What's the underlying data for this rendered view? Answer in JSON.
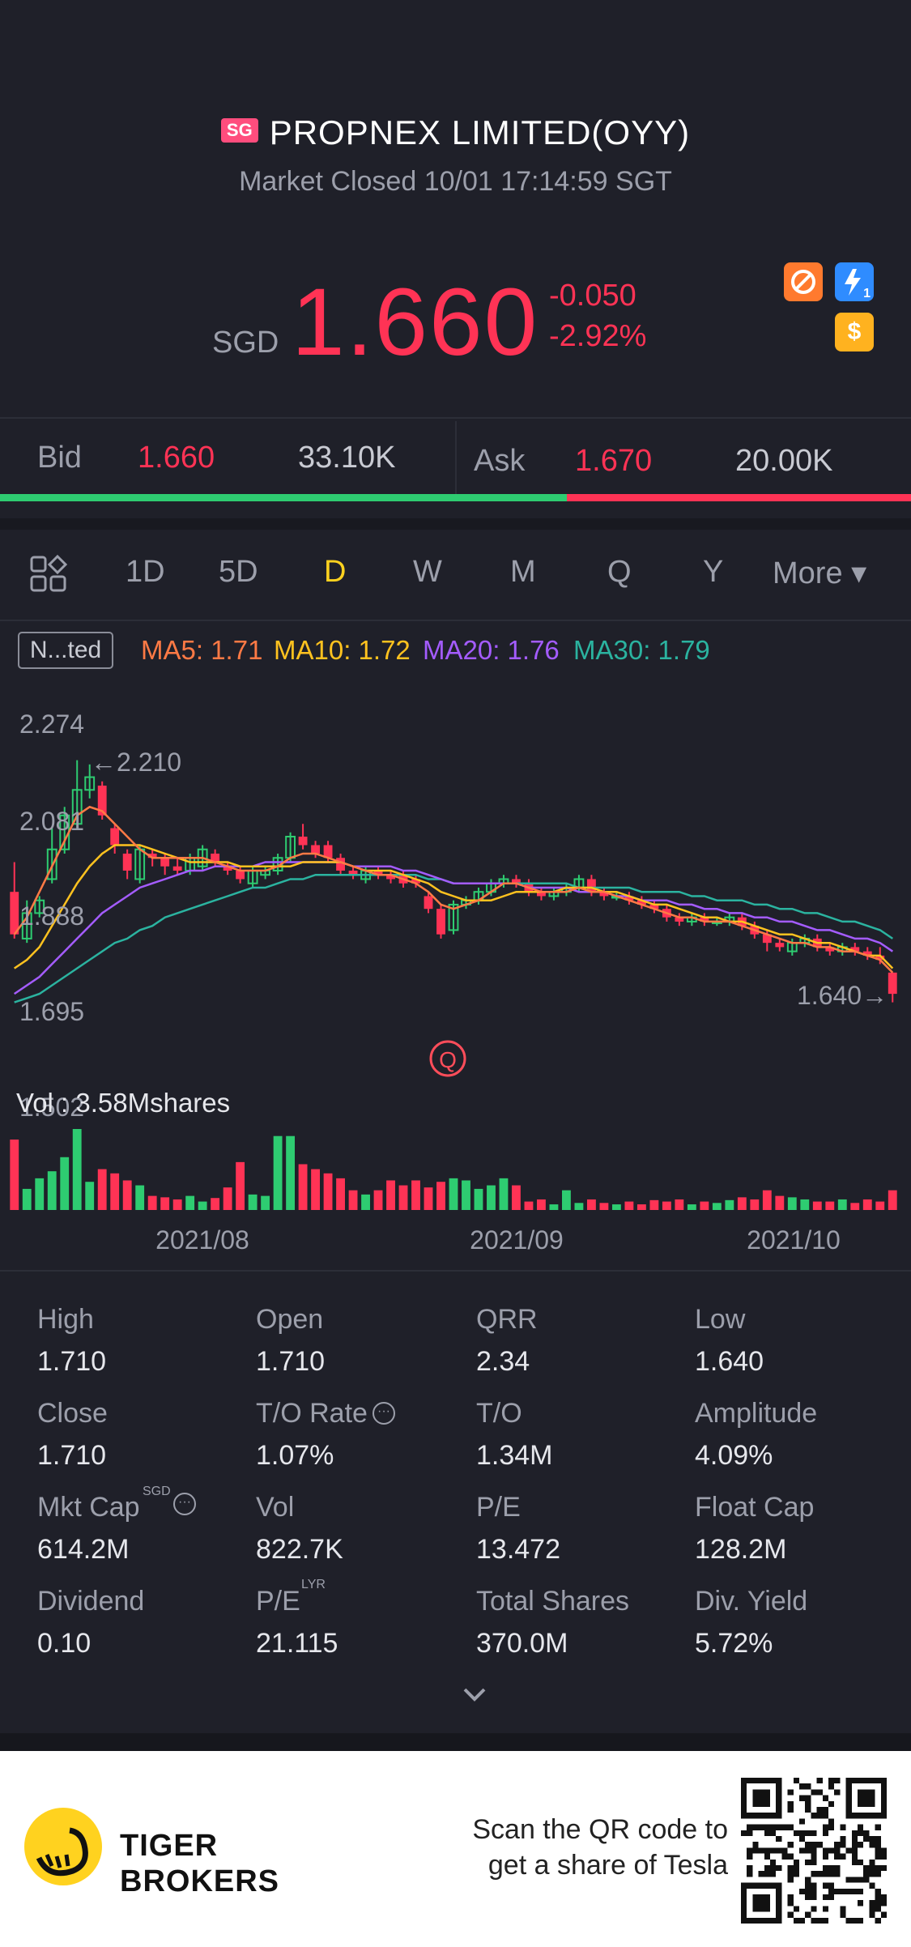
{
  "header": {
    "exchange_badge": "SG",
    "stock_name": "PROPNEX LIMITED(OYY)",
    "market_status": "Market Closed 10/01 17:14:59 SGT",
    "currency": "SGD",
    "price": "1.660",
    "change": "-0.050",
    "change_pct": "-2.92%",
    "price_color": "#ff3355",
    "icons": [
      "no-shorting-icon",
      "lightning-badge-icon",
      "dollar-badge-icon"
    ],
    "lightning_badge_number": "1"
  },
  "quote": {
    "bid_label": "Bid",
    "bid_price": "1.660",
    "bid_qty": "33.10K",
    "ask_label": "Ask",
    "ask_price": "1.670",
    "ask_qty": "20.00K"
  },
  "tabs": [
    {
      "label": "1D"
    },
    {
      "label": "5D"
    },
    {
      "label": "D",
      "active": true
    },
    {
      "label": "W"
    },
    {
      "label": "M"
    },
    {
      "label": "Q"
    },
    {
      "label": "Y"
    },
    {
      "label": "More ▾"
    }
  ],
  "indicators": {
    "mode_button": "N...ted",
    "ma5": "MA5: 1.71",
    "ma10": "MA10: 1.72",
    "ma20": "MA20: 1.76",
    "ma30": "MA30: 1.79",
    "ma5_color": "#ff7a45",
    "ma10_color": "#ffc21f",
    "ma20_color": "#a45cff",
    "ma30_color": "#2bb3a0"
  },
  "chart_data": {
    "type": "candlestick",
    "y_labels": [
      "2.274",
      "2.081",
      "1.888",
      "1.695",
      "1.502"
    ],
    "ylim": [
      1.502,
      2.274
    ],
    "high_marker": "2.210",
    "low_marker": "1.640",
    "volume_label": "Vol  : 3.58Mshares",
    "x_labels": [
      "2021/08",
      "2021/09",
      "2021/10"
    ],
    "up_color": "#2ecc71",
    "down_color": "#ff3355",
    "candles": [
      {
        "o": 1.9,
        "c": 1.8,
        "h": 1.97,
        "l": 1.79
      },
      {
        "o": 1.79,
        "c": 1.85,
        "h": 1.88,
        "l": 1.78
      },
      {
        "o": 1.85,
        "c": 1.88,
        "h": 1.89,
        "l": 1.84
      },
      {
        "o": 1.93,
        "c": 2.0,
        "h": 2.05,
        "l": 1.92
      },
      {
        "o": 2.0,
        "c": 2.08,
        "h": 2.1,
        "l": 1.99
      },
      {
        "o": 2.06,
        "c": 2.14,
        "h": 2.21,
        "l": 2.05
      },
      {
        "o": 2.14,
        "c": 2.17,
        "h": 2.2,
        "l": 2.12
      },
      {
        "o": 2.15,
        "c": 2.08,
        "h": 2.16,
        "l": 2.07
      },
      {
        "o": 2.05,
        "c": 2.01,
        "h": 2.06,
        "l": 1.99
      },
      {
        "o": 1.99,
        "c": 1.95,
        "h": 2.0,
        "l": 1.93
      },
      {
        "o": 1.93,
        "c": 2.0,
        "h": 2.01,
        "l": 1.92
      },
      {
        "o": 1.99,
        "c": 1.98,
        "h": 2.0,
        "l": 1.96
      },
      {
        "o": 1.98,
        "c": 1.96,
        "h": 1.99,
        "l": 1.94
      },
      {
        "o": 1.96,
        "c": 1.95,
        "h": 1.98,
        "l": 1.94
      },
      {
        "o": 1.95,
        "c": 1.98,
        "h": 1.99,
        "l": 1.94
      },
      {
        "o": 1.96,
        "c": 2.0,
        "h": 2.01,
        "l": 1.95
      },
      {
        "o": 1.99,
        "c": 1.97,
        "h": 2.0,
        "l": 1.96
      },
      {
        "o": 1.96,
        "c": 1.95,
        "h": 1.97,
        "l": 1.94
      },
      {
        "o": 1.95,
        "c": 1.93,
        "h": 1.96,
        "l": 1.92
      },
      {
        "o": 1.92,
        "c": 1.95,
        "h": 1.96,
        "l": 1.91
      },
      {
        "o": 1.94,
        "c": 1.95,
        "h": 1.96,
        "l": 1.93
      },
      {
        "o": 1.95,
        "c": 1.98,
        "h": 1.99,
        "l": 1.94
      },
      {
        "o": 1.98,
        "c": 2.03,
        "h": 2.04,
        "l": 1.97
      },
      {
        "o": 2.03,
        "c": 2.01,
        "h": 2.06,
        "l": 2.0
      },
      {
        "o": 2.01,
        "c": 1.99,
        "h": 2.02,
        "l": 1.98
      },
      {
        "o": 2.01,
        "c": 1.98,
        "h": 2.02,
        "l": 1.97
      },
      {
        "o": 1.98,
        "c": 1.95,
        "h": 1.99,
        "l": 1.94
      },
      {
        "o": 1.95,
        "c": 1.94,
        "h": 1.96,
        "l": 1.93
      },
      {
        "o": 1.93,
        "c": 1.95,
        "h": 1.96,
        "l": 1.92
      },
      {
        "o": 1.95,
        "c": 1.94,
        "h": 1.96,
        "l": 1.93
      },
      {
        "o": 1.94,
        "c": 1.93,
        "h": 1.95,
        "l": 1.92
      },
      {
        "o": 1.94,
        "c": 1.92,
        "h": 1.95,
        "l": 1.91
      },
      {
        "o": 1.93,
        "c": 1.92,
        "h": 1.94,
        "l": 1.91
      },
      {
        "o": 1.89,
        "c": 1.86,
        "h": 1.9,
        "l": 1.85
      },
      {
        "o": 1.86,
        "c": 1.8,
        "h": 1.87,
        "l": 1.79
      },
      {
        "o": 1.81,
        "c": 1.87,
        "h": 1.88,
        "l": 1.8
      },
      {
        "o": 1.87,
        "c": 1.88,
        "h": 1.89,
        "l": 1.86
      },
      {
        "o": 1.88,
        "c": 1.9,
        "h": 1.91,
        "l": 1.87
      },
      {
        "o": 1.9,
        "c": 1.92,
        "h": 1.93,
        "l": 1.89
      },
      {
        "o": 1.92,
        "c": 1.93,
        "h": 1.94,
        "l": 1.91
      },
      {
        "o": 1.93,
        "c": 1.92,
        "h": 1.94,
        "l": 1.91
      },
      {
        "o": 1.92,
        "c": 1.9,
        "h": 1.93,
        "l": 1.89
      },
      {
        "o": 1.9,
        "c": 1.89,
        "h": 1.91,
        "l": 1.88
      },
      {
        "o": 1.89,
        "c": 1.9,
        "h": 1.91,
        "l": 1.88
      },
      {
        "o": 1.9,
        "c": 1.91,
        "h": 1.92,
        "l": 1.89
      },
      {
        "o": 1.91,
        "c": 1.93,
        "h": 1.94,
        "l": 1.9
      },
      {
        "o": 1.93,
        "c": 1.9,
        "h": 1.94,
        "l": 1.89
      },
      {
        "o": 1.9,
        "c": 1.89,
        "h": 1.91,
        "l": 1.88
      },
      {
        "o": 1.89,
        "c": 1.89,
        "h": 1.9,
        "l": 1.88
      },
      {
        "o": 1.89,
        "c": 1.88,
        "h": 1.9,
        "l": 1.87
      },
      {
        "o": 1.88,
        "c": 1.87,
        "h": 1.89,
        "l": 1.86
      },
      {
        "o": 1.87,
        "c": 1.86,
        "h": 1.88,
        "l": 1.85
      },
      {
        "o": 1.86,
        "c": 1.84,
        "h": 1.87,
        "l": 1.83
      },
      {
        "o": 1.84,
        "c": 1.83,
        "h": 1.85,
        "l": 1.82
      },
      {
        "o": 1.83,
        "c": 1.84,
        "h": 1.85,
        "l": 1.82
      },
      {
        "o": 1.84,
        "c": 1.83,
        "h": 1.85,
        "l": 1.82
      },
      {
        "o": 1.83,
        "c": 1.83,
        "h": 1.84,
        "l": 1.82
      },
      {
        "o": 1.83,
        "c": 1.84,
        "h": 1.85,
        "l": 1.82
      },
      {
        "o": 1.84,
        "c": 1.82,
        "h": 1.85,
        "l": 1.81
      },
      {
        "o": 1.82,
        "c": 1.8,
        "h": 1.83,
        "l": 1.79
      },
      {
        "o": 1.8,
        "c": 1.78,
        "h": 1.81,
        "l": 1.76
      },
      {
        "o": 1.78,
        "c": 1.77,
        "h": 1.79,
        "l": 1.76
      },
      {
        "o": 1.76,
        "c": 1.78,
        "h": 1.79,
        "l": 1.75
      },
      {
        "o": 1.78,
        "c": 1.79,
        "h": 1.8,
        "l": 1.77
      },
      {
        "o": 1.79,
        "c": 1.77,
        "h": 1.8,
        "l": 1.76
      },
      {
        "o": 1.77,
        "c": 1.76,
        "h": 1.78,
        "l": 1.75
      },
      {
        "o": 1.76,
        "c": 1.77,
        "h": 1.78,
        "l": 1.75
      },
      {
        "o": 1.77,
        "c": 1.76,
        "h": 1.78,
        "l": 1.75
      },
      {
        "o": 1.76,
        "c": 1.75,
        "h": 1.77,
        "l": 1.74
      },
      {
        "o": 1.75,
        "c": 1.74,
        "h": 1.77,
        "l": 1.73
      },
      {
        "o": 1.71,
        "c": 1.66,
        "h": 1.71,
        "l": 1.64
      }
    ],
    "ma5": [
      1.8,
      1.84,
      1.9,
      1.96,
      2.02,
      2.08,
      2.1,
      2.09,
      2.06,
      2.03,
      2.0,
      1.98,
      1.98,
      1.98,
      1.98,
      1.98,
      1.97,
      1.96,
      1.95,
      1.95,
      1.95,
      1.96,
      1.98,
      1.99,
      1.99,
      1.98,
      1.97,
      1.96,
      1.95,
      1.94,
      1.94,
      1.93,
      1.92,
      1.9,
      1.87,
      1.86,
      1.87,
      1.88,
      1.9,
      1.92,
      1.92,
      1.91,
      1.9,
      1.9,
      1.9,
      1.91,
      1.9,
      1.9,
      1.89,
      1.88,
      1.87,
      1.86,
      1.85,
      1.84,
      1.84,
      1.83,
      1.83,
      1.83,
      1.82,
      1.81,
      1.8,
      1.79,
      1.78,
      1.78,
      1.77,
      1.77,
      1.76,
      1.76,
      1.75,
      1.74,
      1.71
    ],
    "ma10": [
      1.72,
      1.74,
      1.77,
      1.82,
      1.87,
      1.92,
      1.96,
      1.99,
      2.01,
      2.01,
      2.01,
      2.0,
      1.99,
      1.98,
      1.97,
      1.97,
      1.97,
      1.97,
      1.96,
      1.96,
      1.96,
      1.96,
      1.96,
      1.97,
      1.97,
      1.97,
      1.97,
      1.96,
      1.95,
      1.95,
      1.95,
      1.94,
      1.93,
      1.92,
      1.9,
      1.89,
      1.88,
      1.88,
      1.88,
      1.89,
      1.9,
      1.9,
      1.9,
      1.9,
      1.91,
      1.91,
      1.91,
      1.9,
      1.9,
      1.89,
      1.88,
      1.87,
      1.87,
      1.86,
      1.85,
      1.84,
      1.84,
      1.83,
      1.83,
      1.82,
      1.81,
      1.8,
      1.8,
      1.79,
      1.78,
      1.78,
      1.77,
      1.76,
      1.75,
      1.75,
      1.72
    ],
    "ma20": [
      1.66,
      1.68,
      1.7,
      1.73,
      1.76,
      1.79,
      1.82,
      1.85,
      1.87,
      1.89,
      1.91,
      1.92,
      1.93,
      1.94,
      1.95,
      1.95,
      1.96,
      1.96,
      1.96,
      1.96,
      1.97,
      1.97,
      1.97,
      1.97,
      1.97,
      1.97,
      1.97,
      1.96,
      1.96,
      1.96,
      1.96,
      1.95,
      1.95,
      1.94,
      1.93,
      1.92,
      1.92,
      1.92,
      1.92,
      1.92,
      1.92,
      1.91,
      1.91,
      1.91,
      1.91,
      1.9,
      1.9,
      1.9,
      1.89,
      1.89,
      1.88,
      1.88,
      1.88,
      1.87,
      1.87,
      1.86,
      1.86,
      1.85,
      1.85,
      1.84,
      1.84,
      1.83,
      1.83,
      1.82,
      1.81,
      1.81,
      1.8,
      1.79,
      1.79,
      1.78,
      1.76
    ],
    "ma30": [
      1.64,
      1.65,
      1.66,
      1.68,
      1.7,
      1.72,
      1.74,
      1.76,
      1.78,
      1.79,
      1.81,
      1.82,
      1.84,
      1.85,
      1.86,
      1.87,
      1.88,
      1.89,
      1.9,
      1.91,
      1.91,
      1.92,
      1.93,
      1.93,
      1.94,
      1.94,
      1.94,
      1.94,
      1.94,
      1.94,
      1.94,
      1.94,
      1.94,
      1.93,
      1.93,
      1.92,
      1.92,
      1.92,
      1.92,
      1.92,
      1.92,
      1.92,
      1.92,
      1.92,
      1.92,
      1.91,
      1.91,
      1.91,
      1.91,
      1.91,
      1.9,
      1.9,
      1.9,
      1.9,
      1.89,
      1.89,
      1.88,
      1.88,
      1.88,
      1.87,
      1.87,
      1.86,
      1.86,
      1.85,
      1.85,
      1.84,
      1.83,
      1.83,
      1.82,
      1.81,
      1.79
    ],
    "volume": [
      1.0,
      0.3,
      0.45,
      0.55,
      0.75,
      1.15,
      0.4,
      0.58,
      0.52,
      0.42,
      0.35,
      0.2,
      0.18,
      0.15,
      0.2,
      0.12,
      0.17,
      0.32,
      0.68,
      0.22,
      0.2,
      1.05,
      1.05,
      0.65,
      0.58,
      0.52,
      0.45,
      0.28,
      0.22,
      0.28,
      0.42,
      0.35,
      0.42,
      0.32,
      0.4,
      0.45,
      0.42,
      0.3,
      0.35,
      0.45,
      0.35,
      0.12,
      0.15,
      0.08,
      0.28,
      0.1,
      0.15,
      0.1,
      0.08,
      0.12,
      0.08,
      0.14,
      0.12,
      0.15,
      0.08,
      0.12,
      0.1,
      0.14,
      0.18,
      0.15,
      0.28,
      0.2,
      0.18,
      0.15,
      0.12,
      0.12,
      0.15,
      0.1,
      0.15,
      0.12,
      0.28
    ]
  },
  "stats": [
    {
      "label": "High",
      "value": "1.710"
    },
    {
      "label": "Open",
      "value": "1.710"
    },
    {
      "label": "QRR",
      "value": "2.34"
    },
    {
      "label": "Low",
      "value": "1.640"
    },
    {
      "label": "Close",
      "value": "1.710"
    },
    {
      "label": "T/O Rate",
      "value": "1.07%"
    },
    {
      "label": "T/O",
      "value": "1.34M"
    },
    {
      "label": "Amplitude",
      "value": "4.09%"
    },
    {
      "label": "Mkt Cap",
      "value": "614.2M"
    },
    {
      "label": "Vol",
      "value": "822.7K"
    },
    {
      "label": "P/E",
      "value": "13.472"
    },
    {
      "label": "Float Cap",
      "value": "128.2M"
    },
    {
      "label": "Dividend",
      "value": "0.10"
    },
    {
      "label": "P/E",
      "value": "21.115"
    },
    {
      "label": "Total Shares",
      "value": "370.0M"
    },
    {
      "label": "Div. Yield",
      "value": "5.72%"
    }
  ],
  "stat_superscripts": {
    "mkt_cap": "SGD",
    "pe_lyr": "LYR"
  },
  "footer": {
    "brand_line1": "TIGER",
    "brand_line2": "BROKERS",
    "scan_line1": "Scan the QR code to",
    "scan_line2": "get a share of Tesla"
  }
}
